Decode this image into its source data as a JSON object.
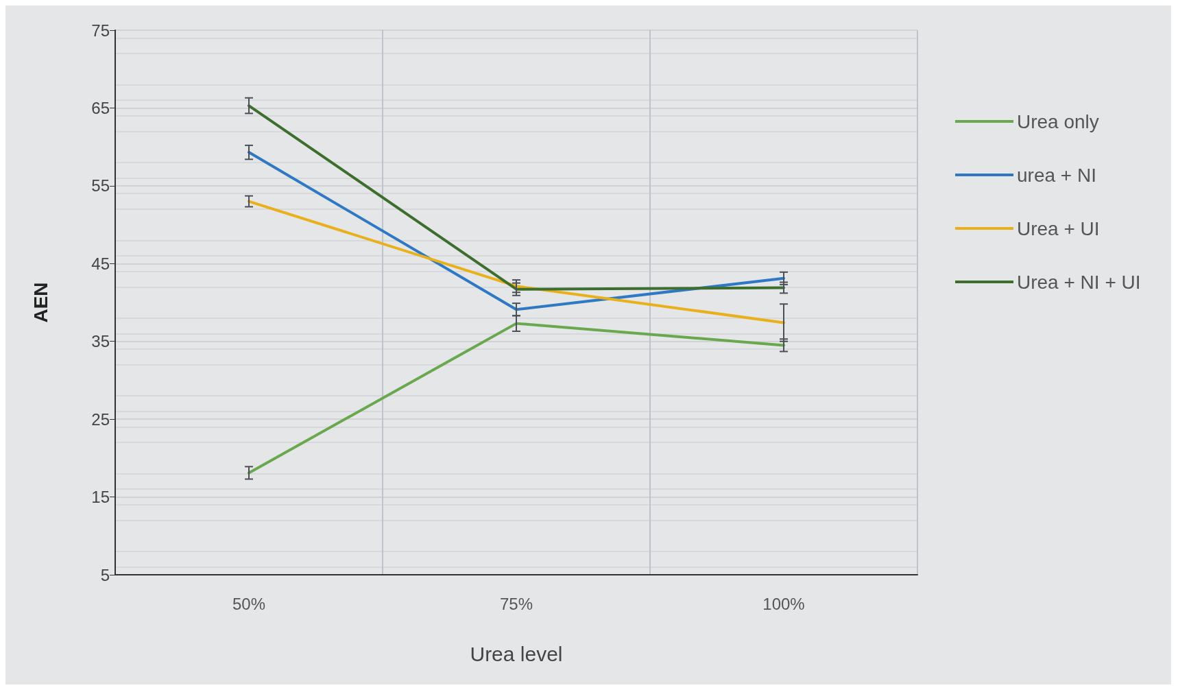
{
  "chart_data": {
    "type": "line",
    "xlabel": "Urea level",
    "ylabel": "AEN",
    "categories": [
      "50%",
      "75%",
      "100%"
    ],
    "series": [
      {
        "name": "Urea only",
        "color": "#6aa84f",
        "values": [
          18.1,
          37.3,
          34.5
        ],
        "errors": [
          0.8,
          1.0,
          0.8
        ]
      },
      {
        "name": "urea + NI",
        "color": "#2f78c4",
        "values": [
          59.3,
          39.1,
          43.1
        ],
        "errors": [
          0.9,
          0.8,
          0.8
        ]
      },
      {
        "name": "Urea + UI",
        "color": "#e8b01a",
        "values": [
          53.0,
          42.1,
          37.4
        ],
        "errors": [
          0.7,
          0.8,
          2.4
        ]
      },
      {
        "name": "Urea + NI + UI",
        "color": "#3e6e2e",
        "values": [
          65.3,
          41.7,
          41.9
        ],
        "errors": [
          1.0,
          0.8,
          0.7
        ]
      }
    ],
    "ylim": [
      5,
      75
    ],
    "yticks": [
      5,
      15,
      25,
      35,
      45,
      55,
      65,
      75
    ],
    "grid": true,
    "legend": "right",
    "marker": "none",
    "line_style": "solid"
  }
}
